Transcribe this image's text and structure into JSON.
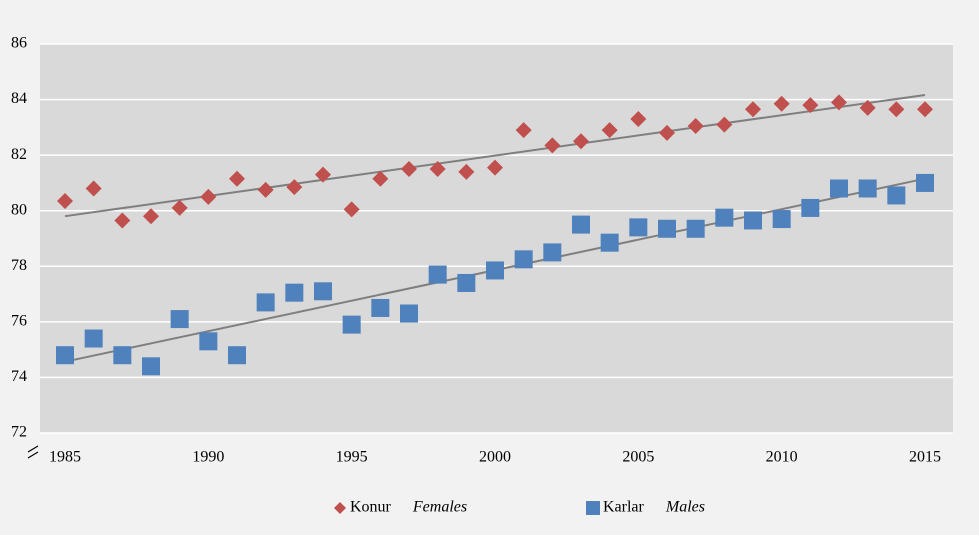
{
  "chart_data": {
    "type": "scatter",
    "x": [
      1985,
      1986,
      1987,
      1988,
      1989,
      1990,
      1991,
      1992,
      1993,
      1994,
      1995,
      1996,
      1997,
      1998,
      1999,
      2000,
      2001,
      2002,
      2003,
      2004,
      2005,
      2006,
      2007,
      2008,
      2009,
      2010,
      2011,
      2012,
      2013,
      2014,
      2015
    ],
    "series": [
      {
        "name": "Konur",
        "name_en": "Females",
        "color": "#c0504d",
        "marker": "diamond",
        "values": [
          80.35,
          80.8,
          79.65,
          79.8,
          80.1,
          80.5,
          81.15,
          80.75,
          80.85,
          81.3,
          80.05,
          81.15,
          81.5,
          81.5,
          81.4,
          81.55,
          82.9,
          82.35,
          82.5,
          82.9,
          83.3,
          82.8,
          83.05,
          83.1,
          83.65,
          83.85,
          83.8,
          83.9,
          83.7,
          83.65,
          83.65
        ]
      },
      {
        "name": "Karlar",
        "name_en": "Males",
        "color": "#4f81bd",
        "marker": "square",
        "values": [
          74.8,
          75.4,
          74.8,
          74.4,
          76.1,
          75.3,
          74.8,
          76.7,
          77.05,
          77.1,
          75.9,
          76.5,
          76.3,
          77.7,
          77.4,
          77.85,
          78.25,
          78.5,
          79.5,
          78.85,
          79.4,
          79.35,
          79.35,
          79.75,
          79.65,
          79.7,
          80.1,
          80.8,
          80.8,
          80.55,
          81.0
        ]
      }
    ],
    "xlim": [
      1985,
      2015
    ],
    "xticks": [
      1985,
      1990,
      1995,
      2000,
      2005,
      2010,
      2015
    ],
    "ylim": [
      72,
      86
    ],
    "yticks": [
      72,
      74,
      76,
      78,
      80,
      82,
      84,
      86
    ],
    "grid": true,
    "trendline": true,
    "legend": "bottom"
  }
}
